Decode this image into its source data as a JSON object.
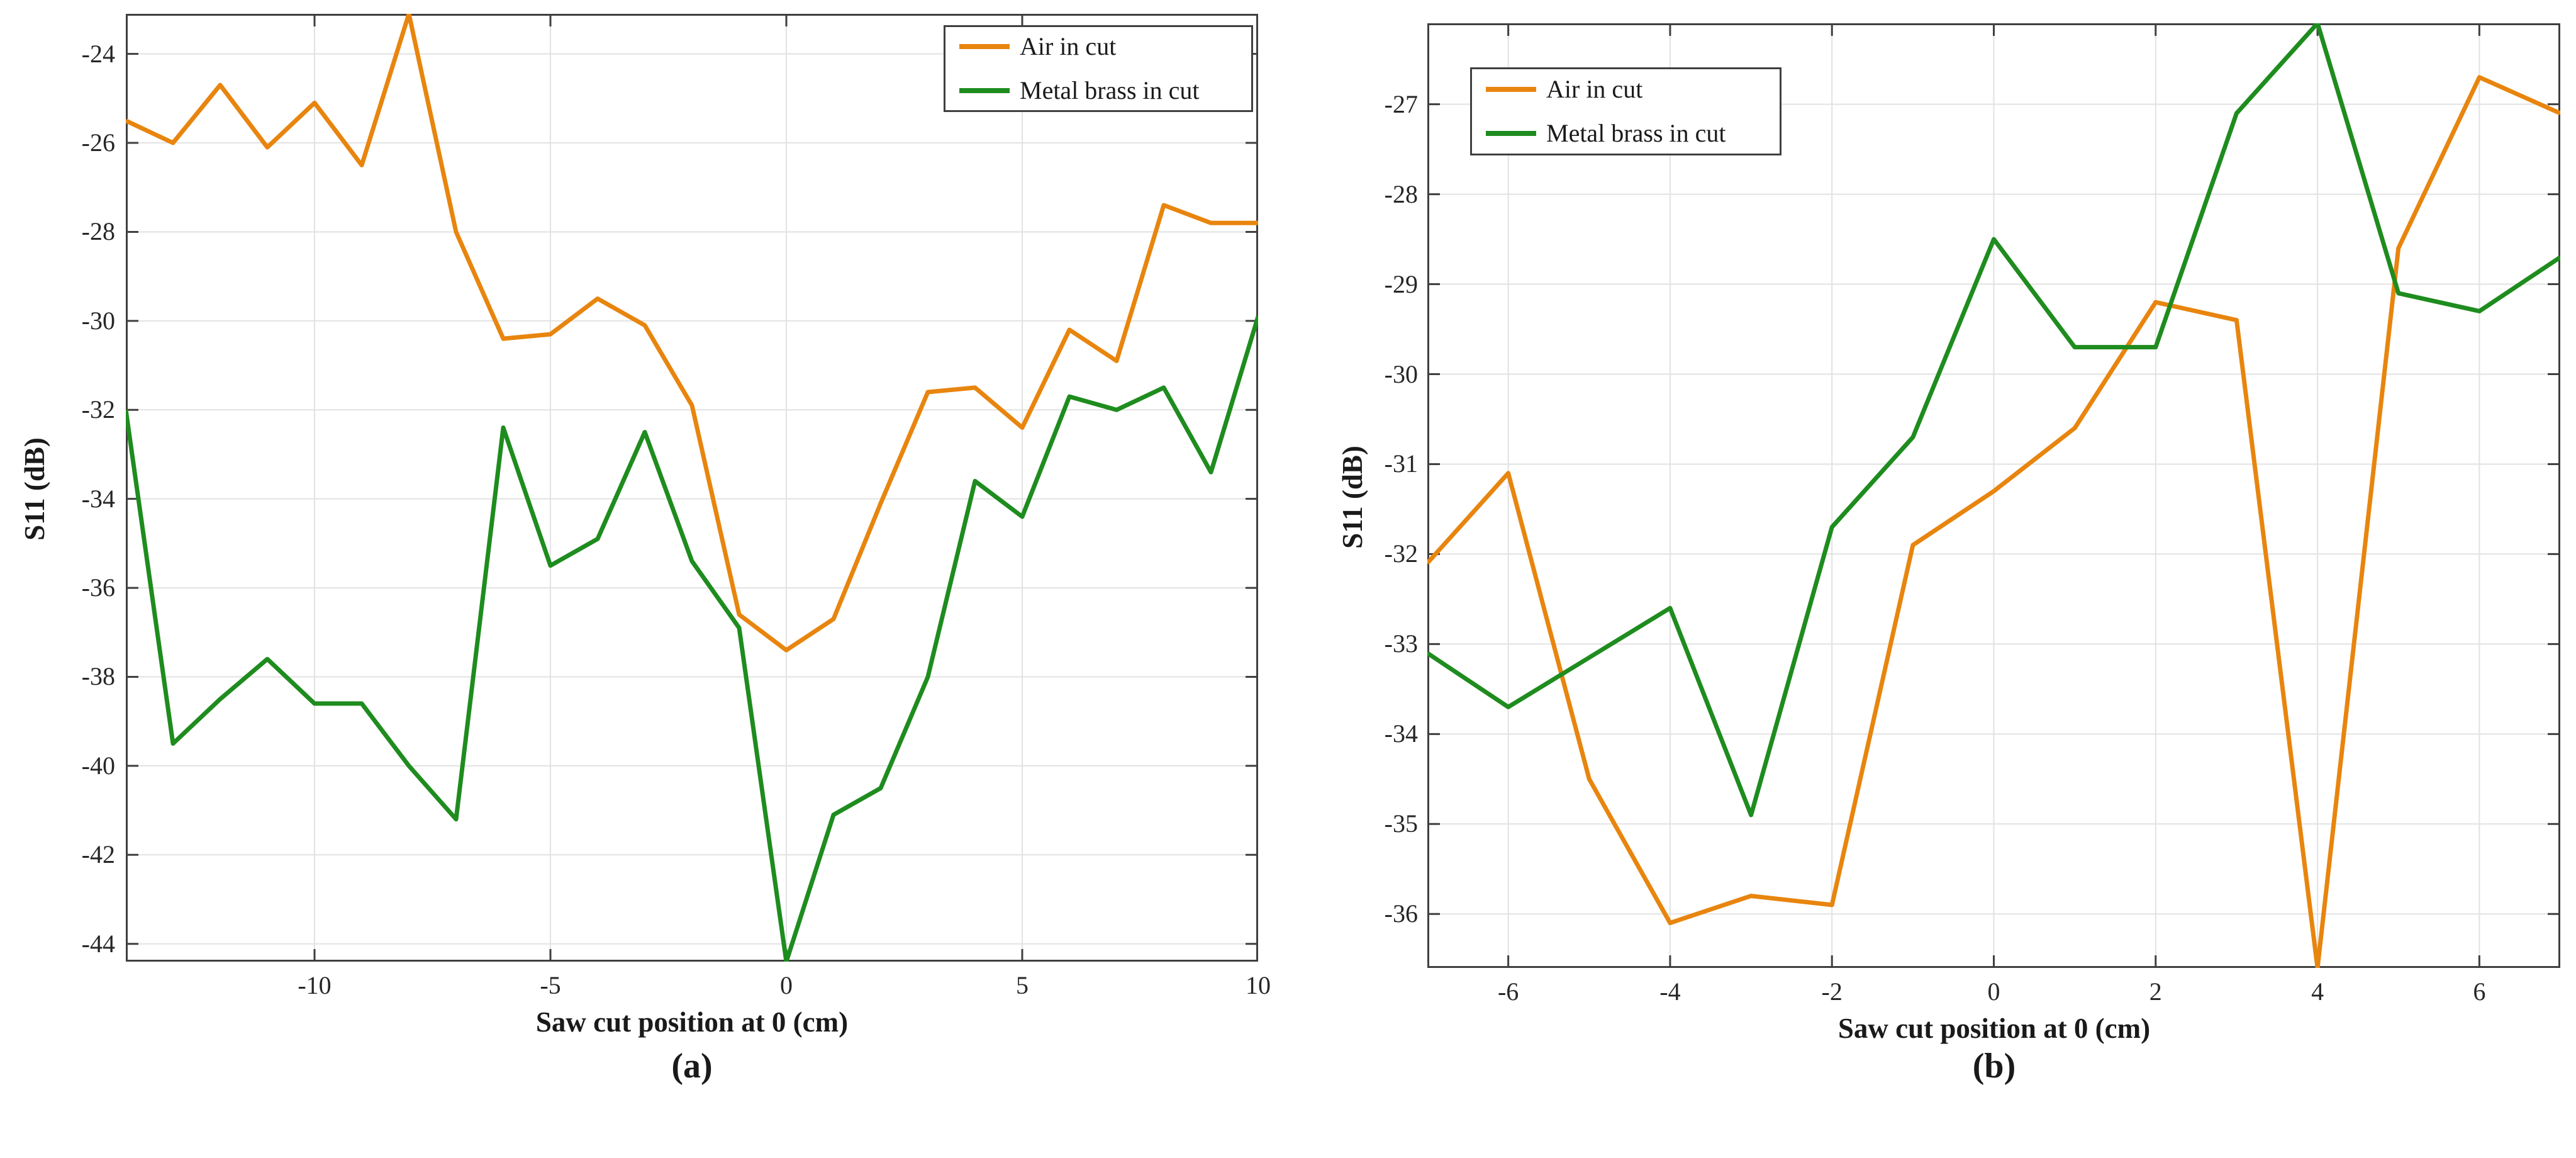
{
  "figure": {
    "caption_a": "(a)",
    "caption_b": "(b)",
    "colors": {
      "air": "#E8850E",
      "brass": "#1E8C1E",
      "axis": "#3f3f3f",
      "grid": "#e2e2e2",
      "text": "#1a1a1a"
    }
  },
  "chart_data": [
    {
      "type": "line",
      "panel_label": "(a)",
      "xlabel": "Saw cut position at 0 (cm)",
      "ylabel": "S11 (dB)",
      "legend_position": "top-right",
      "grid": true,
      "xlim": [
        -14,
        10
      ],
      "ylim": [
        -44.4,
        -23.1
      ],
      "xticks": [
        -10,
        -5,
        0,
        5,
        10
      ],
      "yticks": [
        -24,
        -26,
        -28,
        -30,
        -32,
        -34,
        -36,
        -38,
        -40,
        -42,
        -44
      ],
      "x": [
        -14,
        -13,
        -12,
        -11,
        -10,
        -9,
        -8,
        -7,
        -6,
        -5,
        -4,
        -3,
        -2,
        -1,
        0,
        1,
        2,
        3,
        4,
        5,
        6,
        7,
        8,
        9,
        10
      ],
      "series": [
        {
          "name": "Air in cut",
          "color": "#E8850E",
          "values": [
            -25.5,
            -26.0,
            -24.7,
            -26.1,
            -25.1,
            -26.5,
            -23.1,
            -28.0,
            -30.4,
            -30.3,
            -29.5,
            -30.1,
            -31.9,
            -36.6,
            -37.4,
            -36.7,
            -34.1,
            -31.6,
            -31.5,
            -32.4,
            -30.2,
            -30.9,
            -27.4,
            -27.8,
            -27.8
          ]
        },
        {
          "name": "Metal brass in cut",
          "color": "#1E8C1E",
          "values": [
            -32.0,
            -39.5,
            -38.5,
            -37.6,
            -38.6,
            -38.6,
            -40.0,
            -41.2,
            -32.4,
            -35.5,
            -34.9,
            -32.5,
            -35.4,
            -36.9,
            -44.4,
            -41.1,
            -40.5,
            -38.0,
            -33.6,
            -34.4,
            -31.7,
            -32.0,
            -31.5,
            -33.4,
            -29.9
          ]
        }
      ]
    },
    {
      "type": "line",
      "panel_label": "(b)",
      "xlabel": "Saw cut position at 0 (cm)",
      "ylabel": "S11 (dB)",
      "legend_position": "top-left",
      "grid": true,
      "xlim": [
        -7,
        7
      ],
      "ylim": [
        -36.6,
        -26.1
      ],
      "xticks": [
        -6,
        -4,
        -2,
        0,
        2,
        4,
        6
      ],
      "yticks": [
        -27,
        -28,
        -29,
        -30,
        -31,
        -32,
        -33,
        -34,
        -35,
        -36
      ],
      "x": [
        -7,
        -6,
        -5,
        -4,
        -3,
        -2,
        -1,
        0,
        1,
        2,
        3,
        4,
        5,
        6,
        7
      ],
      "series": [
        {
          "name": "Air in cut",
          "color": "#E8850E",
          "values": [
            -32.1,
            -31.1,
            -34.5,
            -36.1,
            -35.8,
            -35.9,
            -31.9,
            -31.3,
            -30.6,
            -29.2,
            -29.4,
            -36.6,
            -28.6,
            -26.7,
            -27.1
          ]
        },
        {
          "name": "Metal brass in cut",
          "color": "#1E8C1E",
          "values": [
            -33.1,
            -33.7,
            -33.15,
            -32.6,
            -34.9,
            -31.7,
            -30.7,
            -28.5,
            -29.7,
            -29.7,
            -27.1,
            -26.1,
            -29.1,
            -29.3,
            -28.7
          ]
        }
      ]
    }
  ]
}
